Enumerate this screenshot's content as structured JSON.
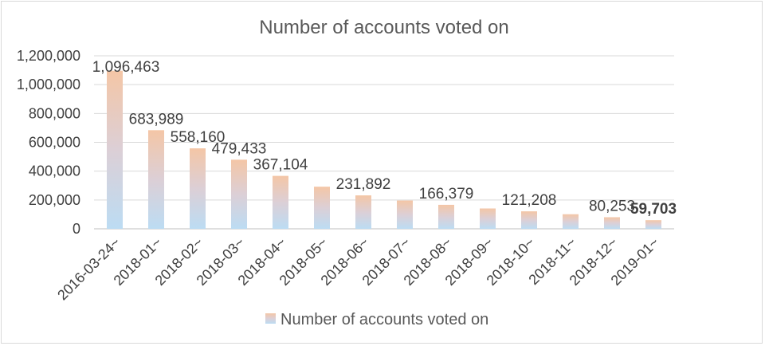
{
  "chart_data": {
    "type": "bar",
    "title": "Number of accounts voted on",
    "series": [
      {
        "name": "Number of accounts voted on",
        "values": [
          1096463,
          683989,
          558160,
          479433,
          367104,
          292000,
          231892,
          196000,
          166379,
          141000,
          121208,
          101000,
          80253,
          59703
        ]
      }
    ],
    "categories": [
      "2016-03-24~",
      "2018-01~",
      "2018-02~",
      "2018-03~",
      "2018-04~",
      "2018-05~",
      "2018-06~",
      "2018-07~",
      "2018-08~",
      "2018-09~",
      "2018-10~",
      "2018-11~",
      "2018-12~",
      "2019-01~"
    ],
    "data_labels": {
      "2016-03-24~": "1,096,463",
      "2018-01~": "683,989",
      "2018-02~": "558,160",
      "2018-03~": "479,433",
      "2018-04~": "367,104",
      "2018-06~": "231,892",
      "2018-08~": "166,379",
      "2018-10~": "121,208",
      "2018-12~": "80,253",
      "2019-01~": "59,703"
    },
    "ylim": [
      0,
      1200000
    ],
    "yticks": [
      0,
      200000,
      400000,
      600000,
      800000,
      1000000,
      1200000
    ],
    "ytick_labels": [
      "0",
      "200,000",
      "400,000",
      "600,000",
      "800,000",
      "1,000,000",
      "1,200,000"
    ],
    "grid": true,
    "legend_position": "bottom",
    "colors": {
      "bar_top": "#f4c6a6",
      "bar_bottom": "#bcdcf3",
      "grid": "#d9d9d9",
      "axis": "#bfbfbf"
    }
  }
}
